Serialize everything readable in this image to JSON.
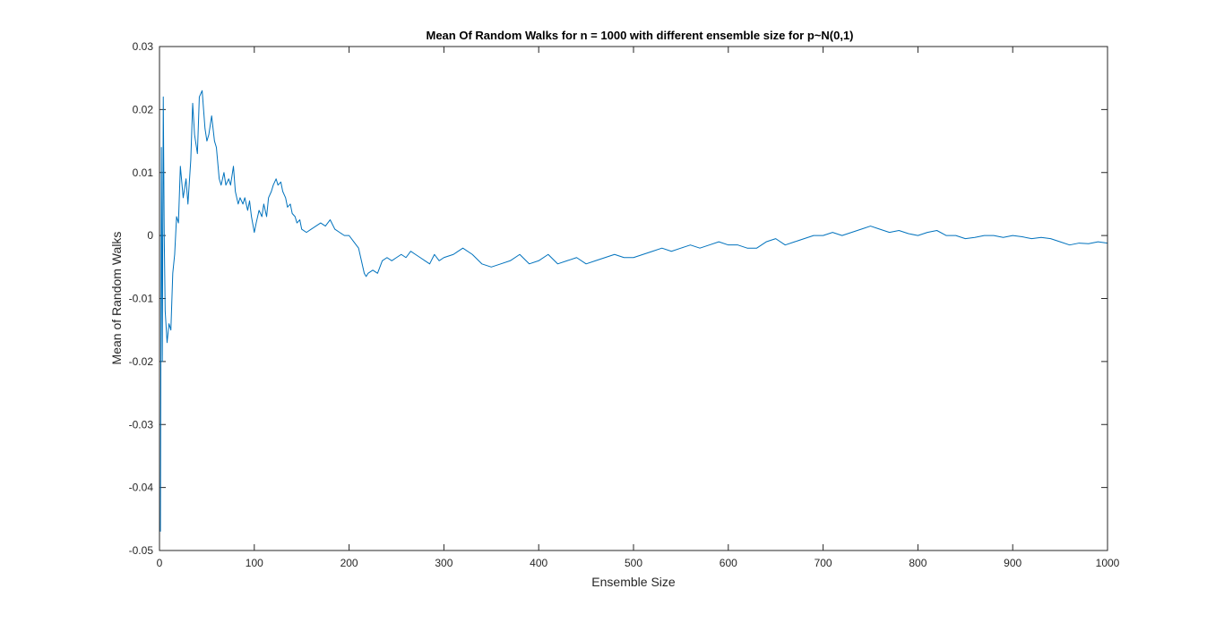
{
  "chart_data": {
    "type": "line",
    "title": "Mean Of Random Walks for n = 1000 with different ensemble size for p~N(0,1)",
    "xlabel": "Ensemble Size",
    "ylabel": "Mean of Random Walks",
    "xlim": [
      0,
      1000
    ],
    "ylim": [
      -0.05,
      0.03
    ],
    "x_ticks": [
      0,
      100,
      200,
      300,
      400,
      500,
      600,
      700,
      800,
      900,
      1000
    ],
    "x_tick_labels": [
      "0",
      "100",
      "200",
      "300",
      "400",
      "500",
      "600",
      "700",
      "800",
      "900",
      "1000"
    ],
    "y_ticks": [
      -0.05,
      -0.04,
      -0.03,
      -0.02,
      -0.01,
      0,
      0.01,
      0.02,
      0.03
    ],
    "y_tick_labels": [
      "-0.05",
      "-0.04",
      "-0.03",
      "-0.02",
      "-0.01",
      "0",
      "0.01",
      "0.02",
      "0.03"
    ],
    "grid": false,
    "series_color": "#0072BD",
    "series": [
      {
        "x": [
          1,
          2,
          3,
          4,
          5,
          6,
          8,
          10,
          12,
          14,
          16,
          18,
          20,
          22,
          25,
          28,
          30,
          33,
          35,
          37,
          40,
          42,
          45,
          48,
          50,
          52,
          55,
          58,
          60,
          63,
          65,
          68,
          70,
          73,
          75,
          78,
          80,
          83,
          85,
          88,
          90,
          93,
          95,
          97,
          100,
          102,
          105,
          108,
          110,
          113,
          115,
          118,
          120,
          123,
          125,
          128,
          130,
          133,
          135,
          138,
          140,
          143,
          145,
          148,
          150,
          155,
          160,
          165,
          170,
          175,
          180,
          185,
          190,
          195,
          200,
          205,
          210,
          213,
          216,
          218,
          220,
          225,
          230,
          235,
          240,
          245,
          250,
          255,
          260,
          265,
          270,
          275,
          280,
          285,
          290,
          295,
          300,
          310,
          320,
          330,
          340,
          350,
          360,
          370,
          380,
          390,
          400,
          410,
          420,
          430,
          440,
          450,
          460,
          470,
          480,
          490,
          500,
          510,
          520,
          530,
          540,
          550,
          560,
          570,
          580,
          590,
          600,
          610,
          620,
          630,
          640,
          650,
          660,
          670,
          680,
          690,
          700,
          710,
          720,
          730,
          740,
          750,
          760,
          770,
          780,
          790,
          800,
          810,
          820,
          830,
          840,
          850,
          860,
          870,
          880,
          890,
          900,
          910,
          920,
          930,
          940,
          950,
          960,
          970,
          980,
          990,
          1000
        ],
        "y": [
          -0.047,
          0.014,
          -0.02,
          0.022,
          0.0,
          -0.012,
          -0.017,
          -0.014,
          -0.015,
          -0.006,
          -0.003,
          0.003,
          0.002,
          0.011,
          0.006,
          0.009,
          0.005,
          0.012,
          0.021,
          0.016,
          0.013,
          0.022,
          0.023,
          0.017,
          0.015,
          0.016,
          0.019,
          0.015,
          0.014,
          0.009,
          0.008,
          0.01,
          0.008,
          0.009,
          0.008,
          0.011,
          0.007,
          0.005,
          0.006,
          0.005,
          0.006,
          0.004,
          0.0055,
          0.003,
          0.0005,
          0.002,
          0.004,
          0.003,
          0.005,
          0.003,
          0.006,
          0.007,
          0.008,
          0.009,
          0.008,
          0.0085,
          0.007,
          0.006,
          0.0045,
          0.005,
          0.0035,
          0.003,
          0.002,
          0.0025,
          0.001,
          0.0005,
          0.001,
          0.0015,
          0.002,
          0.0015,
          0.0025,
          0.001,
          0.0005,
          0.0,
          0.0,
          -0.001,
          -0.002,
          -0.004,
          -0.006,
          -0.0065,
          -0.006,
          -0.0055,
          -0.006,
          -0.004,
          -0.0035,
          -0.004,
          -0.0035,
          -0.003,
          -0.0035,
          -0.0025,
          -0.003,
          -0.0035,
          -0.004,
          -0.0045,
          -0.003,
          -0.004,
          -0.0035,
          -0.003,
          -0.002,
          -0.003,
          -0.0045,
          -0.005,
          -0.0045,
          -0.004,
          -0.003,
          -0.0045,
          -0.004,
          -0.003,
          -0.0045,
          -0.004,
          -0.0035,
          -0.0045,
          -0.004,
          -0.0035,
          -0.003,
          -0.0035,
          -0.0035,
          -0.003,
          -0.0025,
          -0.002,
          -0.0025,
          -0.002,
          -0.0015,
          -0.002,
          -0.0015,
          -0.001,
          -0.0015,
          -0.0015,
          -0.002,
          -0.002,
          -0.001,
          -0.0005,
          -0.0015,
          -0.001,
          -0.0005,
          0.0,
          0.0,
          0.0005,
          0.0,
          0.0005,
          0.001,
          0.0015,
          0.001,
          0.0005,
          0.0008,
          0.0003,
          0.0,
          0.0005,
          0.0008,
          0.0,
          0.0,
          -0.0005,
          -0.0003,
          0.0,
          0.0,
          -0.0003,
          0.0,
          -0.0002,
          -0.0005,
          -0.0003,
          -0.0005,
          -0.001,
          -0.0015,
          -0.0012,
          -0.0013,
          -0.001,
          -0.0012
        ]
      }
    ]
  }
}
